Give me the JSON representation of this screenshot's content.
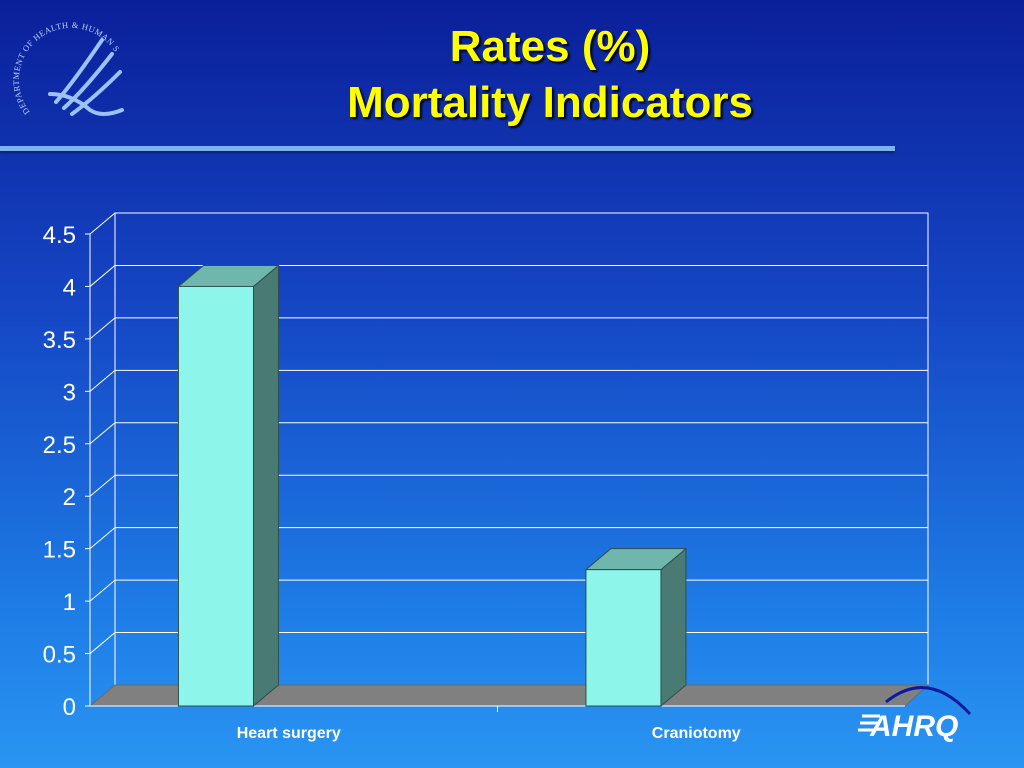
{
  "slide": {
    "title_line1": "Rates (%)",
    "title_line2": "Mortality Indicators"
  },
  "logos": {
    "hhs_text": "DEPARTMENT OF HEALTH & HUMAN SERVICES · USA",
    "ahrq_text": "AHRQ"
  },
  "colors": {
    "bar_front": "#8ef5ea",
    "bar_side": "#4a7a74",
    "bar_top": "#6fb7ad",
    "floor": "#808080",
    "gridline": "#ffffff",
    "text": "#ffffff"
  },
  "chart_data": {
    "type": "bar",
    "title": "",
    "xlabel": "",
    "ylabel": "",
    "categories": [
      "Heart surgery",
      "Craniotomy"
    ],
    "values": [
      4.0,
      1.3
    ],
    "ylim": [
      0,
      4.5
    ],
    "yticks": [
      "0",
      "0.5",
      "1",
      "1.5",
      "2",
      "2.5",
      "3",
      "3.5",
      "4",
      "4.5"
    ],
    "grid": true,
    "legend": "none",
    "style": "3d"
  }
}
